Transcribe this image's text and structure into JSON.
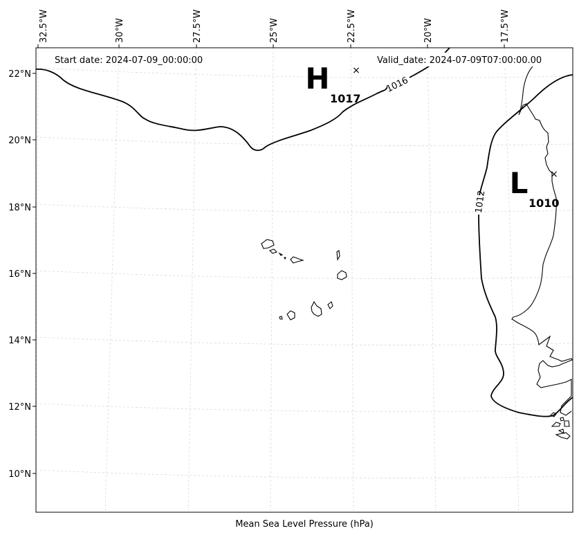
{
  "map": {
    "start_date": "Start date: 2024-07-09_00:00:00",
    "valid_date": "Valid_date: 2024-07-09T07:00:00.00",
    "caption": "Mean Sea Level Pressure (hPa)",
    "longitude_labels": [
      "32.5°W",
      "30°W",
      "27.5°W",
      "25°W",
      "22.5°W",
      "20°W",
      "17.5°W"
    ],
    "latitude_labels": [
      "22°N",
      "20°N",
      "18°N",
      "16°N",
      "14°N",
      "12°N",
      "10°N"
    ],
    "pressure_centers": [
      {
        "type": "H",
        "value": "1017",
        "marker": "×"
      },
      {
        "type": "L",
        "value": "1010",
        "marker": "×"
      }
    ],
    "isobars": [
      {
        "label": "1016"
      },
      {
        "label": "1012"
      }
    ],
    "colors": {
      "isobar": "#000000",
      "coast": "#000000",
      "grid": "#d8d8d8"
    }
  }
}
